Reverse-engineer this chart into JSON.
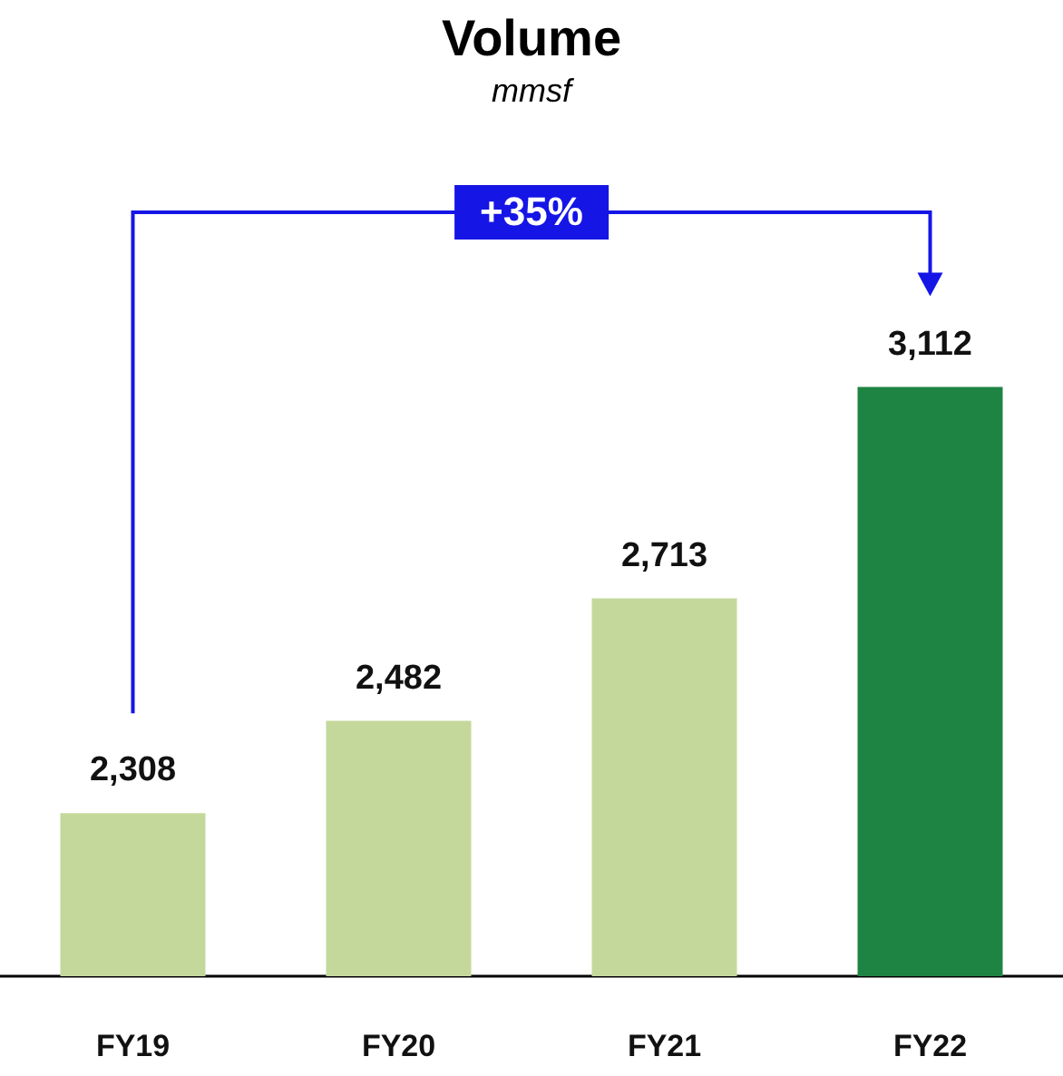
{
  "chart_data": {
    "type": "bar",
    "title": "Volume",
    "subtitle": "mmsf",
    "categories": [
      "FY19",
      "FY20",
      "FY21",
      "FY22"
    ],
    "values": [
      2308,
      2482,
      2713,
      3112
    ],
    "value_labels": [
      "2,308",
      "2,482",
      "2,713",
      "3,112"
    ],
    "colors": [
      "#c5d89b",
      "#c5d89b",
      "#c5d89b",
      "#1e8443"
    ],
    "ylim": [
      2000,
      3500
    ],
    "annotations": [
      "+35%"
    ]
  }
}
